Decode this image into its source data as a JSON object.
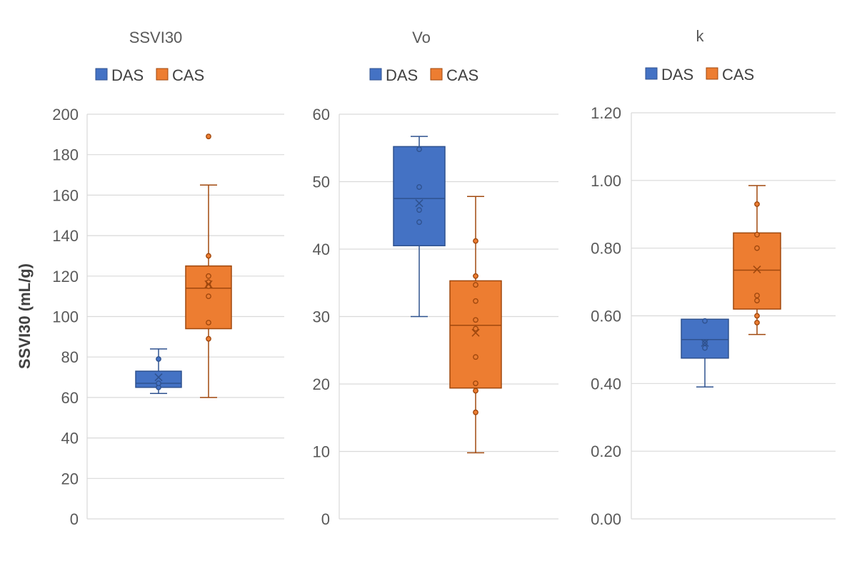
{
  "colors": {
    "DAS": "#4472C4",
    "CAS": "#ED7D31",
    "DAS_stroke": "#2F528F",
    "CAS_stroke": "#A0480E",
    "grid": "#D9D9D9"
  },
  "chart_data": [
    {
      "type": "box",
      "title": "SSVI30",
      "ylabel": "SSVI30 (mL/g)",
      "ylim": [
        0,
        200
      ],
      "yticks": [
        "0",
        "20",
        "40",
        "60",
        "80",
        "100",
        "120",
        "140",
        "160",
        "180",
        "200"
      ],
      "grid": true,
      "legend_position": "top",
      "series": [
        {
          "name": "DAS",
          "whisker_low": 62,
          "q1": 65,
          "median": 67,
          "q3": 73,
          "whisker_high": 84,
          "mean": 70,
          "points": [
            65,
            67,
            79
          ]
        },
        {
          "name": "CAS",
          "whisker_low": 60,
          "q1": 94,
          "median": 114,
          "q3": 125,
          "whisker_high": 165,
          "mean": 116,
          "points": [
            89,
            97,
            110,
            115,
            117,
            120,
            130,
            189
          ]
        }
      ]
    },
    {
      "type": "box",
      "title": "Vo",
      "ylabel": "",
      "ylim": [
        0,
        60
      ],
      "yticks": [
        "0",
        "10",
        "20",
        "30",
        "40",
        "50",
        "60"
      ],
      "grid": true,
      "legend_position": "top",
      "series": [
        {
          "name": "DAS",
          "whisker_low": 30,
          "q1": 40.5,
          "median": 47.5,
          "q3": 55.2,
          "whisker_high": 56.7,
          "mean": 46.8,
          "points": [
            44,
            45.8,
            49.2,
            54.8
          ]
        },
        {
          "name": "CAS",
          "whisker_low": 9.8,
          "q1": 19.4,
          "median": 28.7,
          "q3": 35.3,
          "whisker_high": 47.8,
          "mean": 27.6,
          "points": [
            15.8,
            19,
            20.1,
            24,
            28.2,
            29.5,
            32.3,
            34.7,
            36,
            41.2
          ]
        }
      ]
    },
    {
      "type": "box",
      "title": "k",
      "ylabel": "",
      "ylim": [
        0,
        1.2
      ],
      "yticks": [
        "0.00",
        "0.20",
        "0.40",
        "0.60",
        "0.80",
        "1.00",
        "1.20"
      ],
      "grid": true,
      "legend_position": "top",
      "series": [
        {
          "name": "DAS",
          "whisker_low": 0.39,
          "q1": 0.475,
          "median": 0.53,
          "q3": 0.59,
          "whisker_high": 0.59,
          "mean": 0.52,
          "points": [
            0.505,
            0.52,
            0.585
          ]
        },
        {
          "name": "CAS",
          "whisker_low": 0.545,
          "q1": 0.62,
          "median": 0.735,
          "q3": 0.845,
          "whisker_high": 0.985,
          "mean": 0.737,
          "points": [
            0.58,
            0.6,
            0.645,
            0.66,
            0.8,
            0.84,
            0.93
          ]
        }
      ]
    }
  ]
}
